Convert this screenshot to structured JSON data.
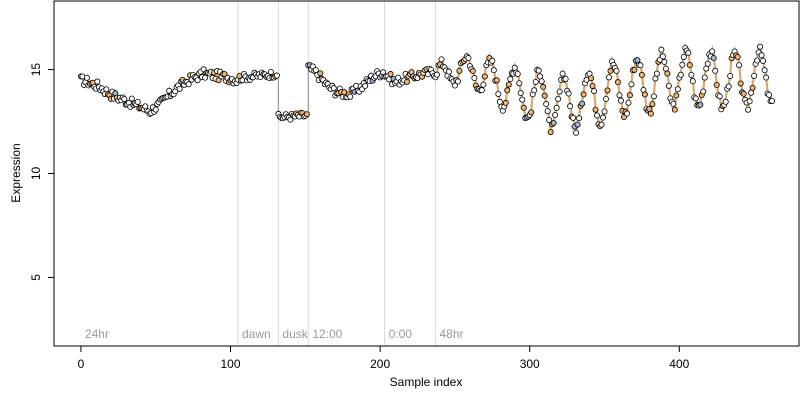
{
  "chart_data": {
    "type": "scatter",
    "title": "",
    "xlabel": "Sample index",
    "ylabel": "Expression",
    "xlim": [
      -18,
      480
    ],
    "ylim": [
      1.7,
      18.3
    ],
    "x_ticks": [
      0,
      100,
      200,
      300,
      400
    ],
    "y_ticks": [
      5,
      10,
      15
    ],
    "grid": false,
    "legend": "none",
    "colors": {
      "point_fill": "#ffffff",
      "point_fill_alt": "#f5b26b",
      "point_fill_blue": "#9eb6dd",
      "point_stroke": "#000000",
      "trace_orange": "#e8a95a",
      "trace_blue": "#7d9ccf",
      "divider": "#d9d9d9",
      "step_segment": "#9a9a9a"
    },
    "markers": [
      {
        "x": 0,
        "label": "24hr"
      },
      {
        "x": 105,
        "label": "dawn"
      },
      {
        "x": 132,
        "label": "dusk"
      },
      {
        "x": 152,
        "label": "12:00"
      },
      {
        "x": 203,
        "label": "0:00"
      },
      {
        "x": 237,
        "label": "48hr"
      }
    ],
    "segments": [
      {
        "x_start": 0,
        "x_end": 104,
        "kind": "smooth",
        "y_anchors": [
          [
            0,
            14.5
          ],
          [
            5,
            14.4
          ],
          [
            12,
            14.2
          ],
          [
            20,
            13.8
          ],
          [
            30,
            13.5
          ],
          [
            40,
            13.2
          ],
          [
            46,
            13.0
          ],
          [
            52,
            13.3
          ],
          [
            58,
            13.7
          ],
          [
            64,
            14.1
          ],
          [
            72,
            14.5
          ],
          [
            82,
            14.8
          ],
          [
            92,
            14.7
          ],
          [
            100,
            14.6
          ],
          [
            104,
            14.5
          ]
        ]
      },
      {
        "x_start": 105,
        "x_end": 131,
        "kind": "flat",
        "y_anchors": [
          [
            105,
            14.6
          ],
          [
            131,
            14.8
          ]
        ]
      },
      {
        "x_start": 132,
        "x_end": 151,
        "kind": "flat",
        "y_anchors": [
          [
            132,
            12.7
          ],
          [
            151,
            12.8
          ]
        ]
      },
      {
        "x_start": 152,
        "x_end": 202,
        "kind": "smooth",
        "y_anchors": [
          [
            152,
            15.1
          ],
          [
            158,
            14.8
          ],
          [
            165,
            14.2
          ],
          [
            172,
            13.9
          ],
          [
            180,
            13.8
          ],
          [
            188,
            14.2
          ],
          [
            196,
            14.7
          ],
          [
            202,
            14.9
          ]
        ]
      },
      {
        "x_start": 203,
        "x_end": 236,
        "kind": "smooth",
        "y_anchors": [
          [
            203,
            14.8
          ],
          [
            210,
            14.4
          ],
          [
            218,
            14.6
          ],
          [
            228,
            14.8
          ],
          [
            236,
            14.9
          ]
        ]
      },
      {
        "x_start": 237,
        "x_end": 462,
        "kind": "oscillating",
        "y_anchors": [
          [
            237,
            14.8
          ],
          [
            260,
            15.0
          ],
          [
            280,
            14.3
          ],
          [
            300,
            13.8
          ],
          [
            320,
            13.3
          ],
          [
            340,
            13.6
          ],
          [
            360,
            14.1
          ],
          [
            380,
            14.3
          ],
          [
            400,
            14.6
          ],
          [
            420,
            14.5
          ],
          [
            440,
            14.4
          ],
          [
            462,
            14.7
          ]
        ]
      }
    ]
  }
}
